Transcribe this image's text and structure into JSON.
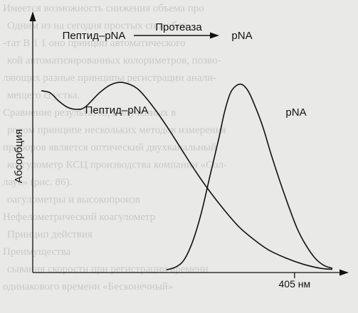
{
  "background_text": {
    "lines": [
      "Имеется возможность снижения объема про",
      "Одним из на сегодня простых способов",
      "-тат В 1 1 оно принцип автоматического",
      "кой автоматизированных колориметров, позво-",
      "ляющих разные принципы регистрации анали-",
      "мещего сгустка.",
      "Сравнение результатов, полученных в",
      "ролом принципе нескольких методов измерения",
      "приборов является оптический двухканальный",
      "коагулометр КСЦ производства компании «Сол-",
      "лаус» (рис. 86).",
      "оагулометры и высокопроизв",
      "Нефелометрический коагулометр",
      "Принцип действия",
      "Преимущества",
      "сывания скорости при регистрации времени",
      "одинакового времени «Бесконечный»"
    ],
    "color": "#c9c9c6"
  },
  "chart_data": {
    "type": "line",
    "title": "",
    "xlabel": "",
    "ylabel": "Абсорбция",
    "x_unit": "нм",
    "x_range": [
      0,
      100
    ],
    "y_range": [
      0,
      100
    ],
    "ticks": [
      {
        "x": 87,
        "label": "405 нм"
      }
    ],
    "series": [
      {
        "name": "Пептид–pNA",
        "color": "#111111",
        "points": [
          [
            0,
            87
          ],
          [
            3,
            86
          ],
          [
            6,
            82
          ],
          [
            9,
            79
          ],
          [
            12,
            78
          ],
          [
            15,
            79
          ],
          [
            20,
            86
          ],
          [
            24,
            90
          ],
          [
            28,
            91
          ],
          [
            33,
            88
          ],
          [
            38,
            80
          ],
          [
            43,
            70
          ],
          [
            48,
            59
          ],
          [
            53,
            48
          ],
          [
            58,
            38
          ],
          [
            63,
            29
          ],
          [
            68,
            21
          ],
          [
            73,
            15
          ],
          [
            78,
            10
          ],
          [
            84,
            6
          ],
          [
            90,
            3
          ],
          [
            96,
            1
          ],
          [
            100,
            0.5
          ]
        ]
      },
      {
        "name": "pNA",
        "color": "#111111",
        "points": [
          [
            43,
            0.3
          ],
          [
            46,
            1.5
          ],
          [
            49,
            5
          ],
          [
            52,
            14
          ],
          [
            55,
            28
          ],
          [
            58,
            46
          ],
          [
            61,
            64
          ],
          [
            63,
            77
          ],
          [
            65,
            86
          ],
          [
            67,
            89.5
          ],
          [
            69,
            90
          ],
          [
            71,
            87
          ],
          [
            73,
            81
          ],
          [
            76,
            70
          ],
          [
            79,
            56
          ],
          [
            82,
            43
          ],
          [
            85,
            31
          ],
          [
            88,
            20
          ],
          [
            91,
            12
          ],
          [
            94,
            6
          ],
          [
            97,
            2.5
          ],
          [
            100,
            1
          ]
        ]
      }
    ],
    "annotations": [
      {
        "text": "Пептид–pNA",
        "target_series": 0
      },
      {
        "text": "pNA",
        "target_series": 1
      }
    ],
    "reaction": {
      "reactant": "Пептид–pNA",
      "enzyme": "Протеаза",
      "product": "pNA"
    },
    "grid": false,
    "legend": "none"
  }
}
